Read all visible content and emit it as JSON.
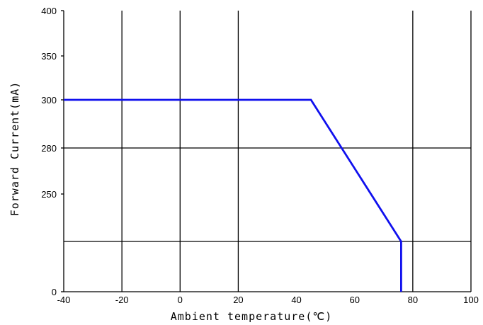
{
  "chart_data": {
    "type": "line",
    "title": "",
    "xlabel": "Ambient temperature(℃)",
    "ylabel": "Forward Current(mA)",
    "xlim": [
      -40,
      100
    ],
    "x_ticks": [
      "-40",
      "-20",
      "0",
      "20",
      "40",
      "60",
      "80",
      "100"
    ],
    "y_ticks": [
      "0",
      "250",
      "280",
      "300",
      "350",
      "400"
    ],
    "grid": true,
    "series": [
      {
        "color": "#1010ee",
        "x": [
          -40,
          45,
          76,
          76
        ],
        "y": [
          300,
          300,
          150,
          0
        ]
      }
    ]
  }
}
